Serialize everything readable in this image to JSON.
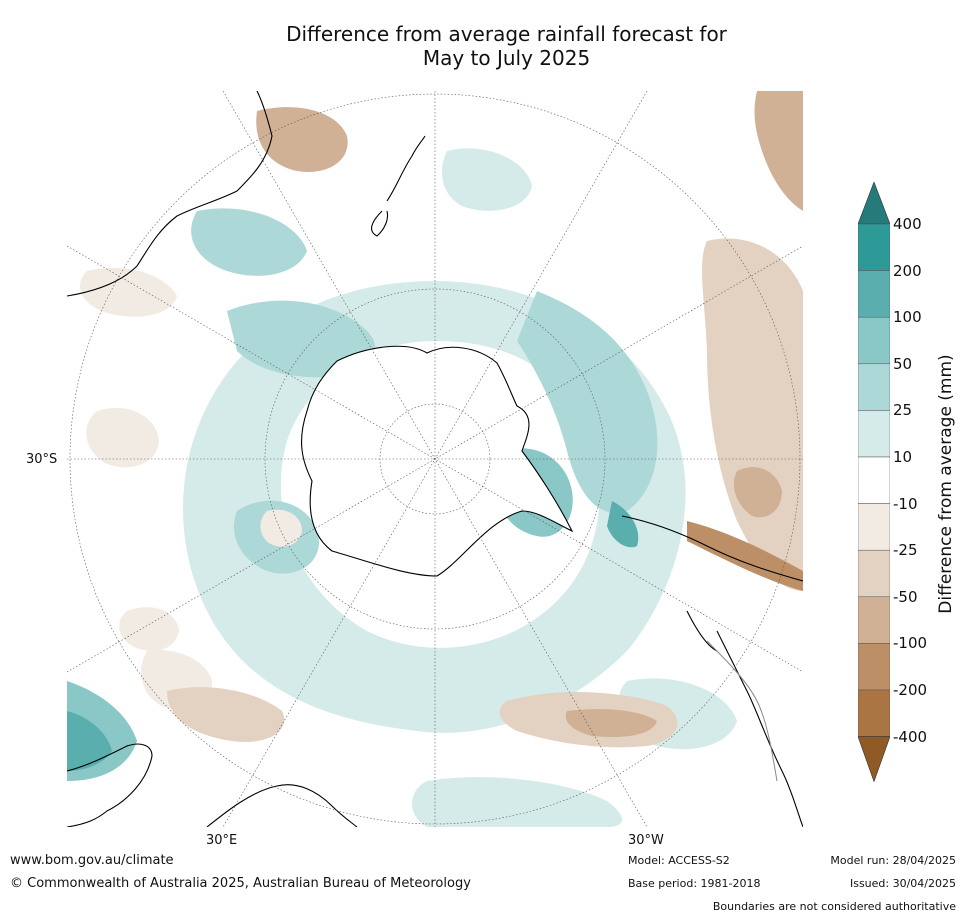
{
  "title_line1": "Difference from average rainfall forecast for",
  "title_line2": "May to July 2025",
  "map": {
    "projection": "south-polar-stereographic",
    "lon_labels": {
      "left": "30°E",
      "right": "30°W"
    },
    "lat_label": "30°S",
    "colors": {
      "teal_light": "#d5ebea",
      "teal_mid": "#add8d8",
      "teal_dark": "#8ac8c7",
      "teal_deep": "#5aaeae",
      "teal_strong": "#2e9a98",
      "brown_light": "#f1ebe4",
      "brown_mid": "#e3d2c1",
      "brown_dark": "#d1b195",
      "brown_deep": "#bd8f66",
      "coast": "#000000"
    }
  },
  "colorbar": {
    "title": "Difference from average (mm)",
    "ticks": [
      "400",
      "200",
      "100",
      "50",
      "25",
      "10",
      "-10",
      "-25",
      "-50",
      "-100",
      "-200",
      "-400"
    ],
    "colors": [
      "#247b79",
      "#2e9a98",
      "#5aaeae",
      "#8ac8c7",
      "#add8d8",
      "#d5ebea",
      "#ffffff",
      "#f1ebe4",
      "#e3d2c1",
      "#d1b195",
      "#bd8f66",
      "#aa7543",
      "#8f5a25"
    ]
  },
  "footer": {
    "url": "www.bom.gov.au/climate",
    "copyright": "© Commonwealth of Australia 2025, Australian Bureau of Meteorology",
    "model": "Model: ACCESS-S2",
    "base_period": "Base period: 1981-2018",
    "model_run": "Model run: 28/04/2025",
    "issued": "Issued: 30/04/2025",
    "disclaimer": "Boundaries are not considered authoritative"
  }
}
